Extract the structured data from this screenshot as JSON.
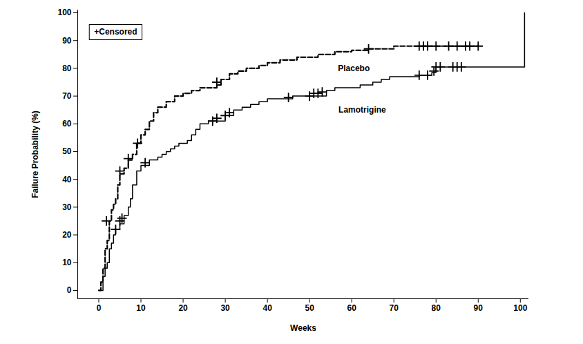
{
  "chart_data": {
    "type": "line",
    "xlabel": "Weeks",
    "ylabel": "Failure Probability (%)",
    "xlim": [
      -5,
      102
    ],
    "xticks": [
      0,
      10,
      20,
      30,
      40,
      50,
      60,
      70,
      80,
      90,
      100
    ],
    "ylim": [
      -3,
      101
    ],
    "yticks": [
      0,
      10,
      20,
      30,
      40,
      50,
      60,
      70,
      80,
      90,
      100
    ],
    "grid": false,
    "annotations": [
      {
        "text": "+Censored",
        "x": 4,
        "y": 93
      },
      {
        "text": "Placebo",
        "x": 60.5,
        "y": 80
      },
      {
        "text": "Lamotrigine",
        "x": 62.5,
        "y": 65
      }
    ],
    "series": [
      {
        "name": "Placebo",
        "color": "#000000",
        "line_style": "dashed",
        "marker": "plus",
        "x": [
          0,
          0.5,
          1,
          1.5,
          2,
          2.5,
          3,
          3.5,
          4,
          4.5,
          5,
          6,
          7,
          8,
          9,
          10,
          11,
          12,
          13,
          14,
          16,
          18,
          20,
          22,
          24,
          28,
          29,
          31,
          33,
          35,
          38,
          40,
          43,
          47,
          52,
          56,
          60,
          64,
          70,
          90
        ],
        "values": [
          0,
          3,
          8,
          15,
          18,
          25,
          29,
          31,
          33,
          38,
          42,
          44,
          47,
          49,
          53,
          56,
          58,
          61,
          64,
          66,
          68,
          70,
          71,
          72,
          73,
          74,
          76,
          78,
          79,
          80,
          81,
          82,
          83,
          84,
          85,
          86,
          86.5,
          87,
          88,
          88
        ],
        "censored": {
          "x": [
            1.8,
            5,
            7,
            9.2,
            28,
            64,
            76,
            77,
            78,
            80,
            83,
            85,
            87,
            88,
            90
          ],
          "values": [
            25,
            43,
            47.5,
            53,
            75,
            87,
            88,
            88,
            88,
            88,
            88,
            88,
            88,
            88,
            88
          ]
        }
      },
      {
        "name": "Lamotrigine",
        "color": "#000000",
        "line_style": "solid",
        "marker": "plus",
        "x": [
          0,
          1,
          1.5,
          2,
          2.5,
          3,
          3.5,
          4,
          5,
          6,
          7,
          7.5,
          8,
          9,
          10,
          12,
          14,
          15,
          16,
          17,
          18,
          19,
          21,
          22,
          23,
          24,
          26,
          30,
          32,
          34,
          36,
          38,
          40,
          46,
          54,
          56,
          62,
          65,
          67,
          69,
          76,
          79,
          80,
          101,
          101
        ],
        "values": [
          0,
          5,
          8,
          10,
          15,
          17,
          20,
          22,
          24,
          27,
          30,
          33,
          38,
          43,
          45,
          47,
          48,
          49,
          50,
          51,
          52,
          53,
          54,
          56,
          58,
          60,
          61,
          63,
          65,
          66,
          67,
          68,
          69,
          70,
          72,
          73,
          74,
          75,
          76,
          77,
          77.5,
          78.5,
          80.5,
          80.5,
          100
        ],
        "censored": {
          "x": [
            4,
            5,
            5.5,
            11,
            27,
            28,
            30,
            31,
            45,
            50,
            51,
            52,
            53,
            76,
            78,
            79.5,
            80,
            81,
            84,
            85,
            86
          ],
          "values": [
            22,
            25,
            26,
            46,
            61,
            62,
            63,
            64,
            69.5,
            70,
            71,
            71,
            71.5,
            77.5,
            77.5,
            79,
            80.5,
            80.5,
            80.5,
            80.5,
            80.5
          ]
        }
      }
    ]
  }
}
